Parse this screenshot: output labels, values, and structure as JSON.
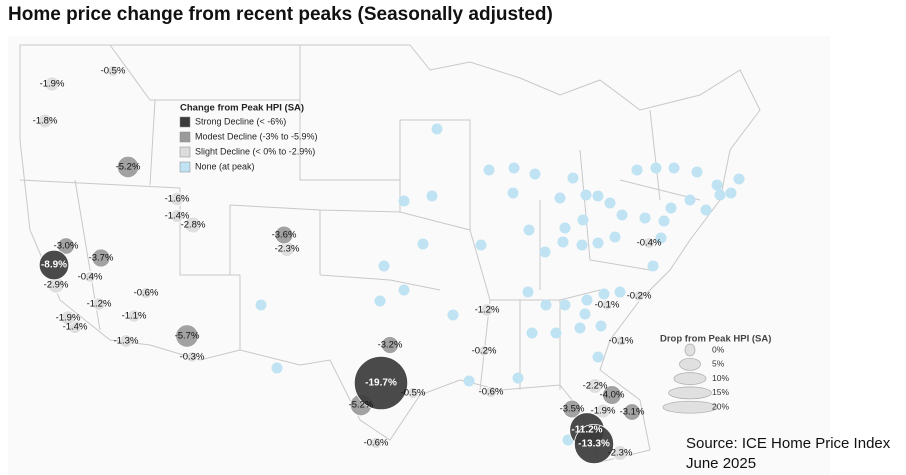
{
  "chart_data": {
    "type": "bubble-map",
    "title": "Home price change from recent peaks (Seasonally adjusted)",
    "legend_title": "Change from Peak HPI (SA)",
    "legend": [
      {
        "name": "Strong Decline (< -6%)",
        "color": "#3b3b3b"
      },
      {
        "name": "Modest Decline (-3% to -5.9%)",
        "color": "#9a9a9a"
      },
      {
        "name": "Slight Decline (< 0% to -2.9%)",
        "color": "#dcdcdc"
      },
      {
        "name": "None (at peak)",
        "color": "#bfe3f2"
      }
    ],
    "size_legend_title": "Drop from Peak HPI (SA)",
    "size_ticks": [
      {
        "value": 0,
        "label": "0%"
      },
      {
        "value": 5,
        "label": "5%"
      },
      {
        "value": 10,
        "label": "10%"
      },
      {
        "value": 15,
        "label": "15%"
      },
      {
        "value": 20,
        "label": "20%"
      }
    ],
    "values": [
      -1.9,
      -0.5,
      -1.8,
      -5.2,
      -1.6,
      -1.4,
      -2.8,
      -3.6,
      -2.3,
      -3.0,
      -8.9,
      -3.7,
      -0.4,
      -2.9,
      -0.6,
      -1.2,
      -1.9,
      -1.1,
      -1.4,
      -1.3,
      -5.7,
      -0.3,
      -3.2,
      -19.7,
      -0.5,
      -5.2,
      -0.6,
      -1.2,
      -0.2,
      -0.6,
      -0.4,
      -0.1,
      -0.2,
      -0.1,
      -2.2,
      -4.0,
      -3.5,
      -1.9,
      -3.1,
      -11.2,
      -13.3,
      -2.3
    ],
    "value_labels": [
      "-1.9%",
      "-0.5%",
      "-1.8%",
      "-5.2%",
      "-1.6%",
      "-1.4%",
      "-2.8%",
      "-3.6%",
      "-2.3%",
      "-3.0%",
      "-8.9%",
      "-3.7%",
      "-0.4%",
      "-2.9%",
      "-0.6%",
      "-1.2%",
      "-1.9%",
      "-1.1%",
      "-1.4%",
      "-1.3%",
      "-5.7%",
      "-0.3%",
      "-3.2%",
      "-19.7%",
      "-0.5%",
      "-5.2%",
      "-0.6%",
      "-1.2%",
      "-0.2%",
      "-0.6%",
      "-0.4%",
      "-0.1%",
      "-0.2%",
      "-0.1%",
      "-2.2%",
      "-4.0%",
      "-3.5%",
      "-1.9%",
      "-3.1%",
      "-11.2%",
      "-13.3%",
      "-2.3%"
    ],
    "source": [
      "Source: ICE Home Price Index",
      "June 2025"
    ]
  }
}
